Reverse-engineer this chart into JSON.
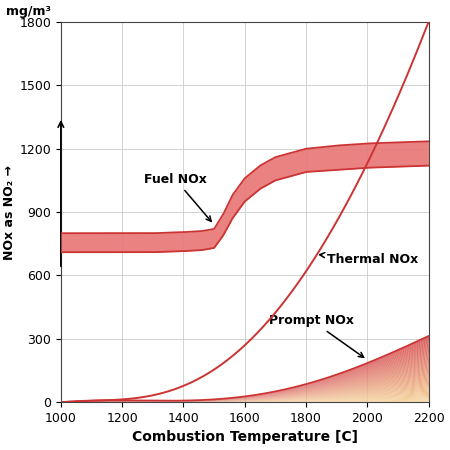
{
  "xlim": [
    1000,
    2200
  ],
  "ylim": [
    0,
    1800
  ],
  "xticks": [
    1000,
    1200,
    1400,
    1600,
    1800,
    2000,
    2200
  ],
  "yticks": [
    0,
    300,
    600,
    900,
    1200,
    1500,
    1800
  ],
  "xlabel": "Combustion Temperature [C]",
  "ylabel_top": "mg/m³",
  "ylabel_side": "NOx as NO₂ →",
  "line_color": "#cc3333",
  "fuel_fill_color": "#e87575",
  "prompt_color_top": "#d96060",
  "prompt_color_bottom": "#f5d9a0",
  "figsize": [
    4.5,
    4.5
  ],
  "dpi": 100,
  "fuel_nox_T": [
    1000,
    1100,
    1200,
    1300,
    1400,
    1460,
    1500,
    1530,
    1560,
    1600,
    1650,
    1700,
    1800,
    1900,
    2000,
    2100,
    2200
  ],
  "fuel_nox_upper": [
    800,
    800,
    800,
    800,
    805,
    810,
    820,
    890,
    980,
    1060,
    1120,
    1160,
    1200,
    1215,
    1225,
    1230,
    1235
  ],
  "fuel_nox_lower": [
    710,
    710,
    710,
    710,
    715,
    720,
    730,
    790,
    870,
    950,
    1010,
    1050,
    1090,
    1100,
    1110,
    1115,
    1120
  ],
  "thermal_nox_T": [
    1000,
    1100,
    1200,
    1300,
    1400,
    1500,
    1600,
    1700,
    1800,
    1900,
    2000,
    2100,
    2200
  ],
  "thermal_nox_V": [
    0,
    5,
    15,
    35,
    75,
    150,
    270,
    430,
    620,
    850,
    1130,
    1450,
    1800
  ],
  "prompt_nox_T": [
    1000,
    1100,
    1200,
    1300,
    1400,
    1500,
    1600,
    1700,
    1800,
    1900,
    2000,
    2100,
    2200
  ],
  "prompt_nox_V": [
    0,
    2,
    5,
    8,
    12,
    18,
    28,
    45,
    80,
    130,
    190,
    250,
    310
  ]
}
